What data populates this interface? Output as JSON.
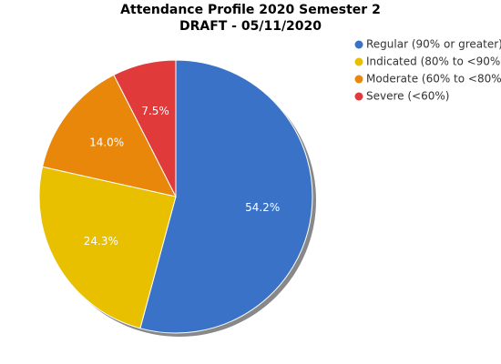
{
  "chart_data": {
    "type": "pie",
    "title": [
      "Attendance Profile 2020 Semester 2",
      "DRAFT - 05/11/2020"
    ],
    "categories": [
      "Regular (90% or greater)",
      "Indicated (80% to <90%)",
      "Moderate (60% to <80%)",
      "Severe (<60%)"
    ],
    "values": [
      54.2,
      24.3,
      14.0,
      7.5
    ],
    "value_labels": [
      "54.2%",
      "24.3%",
      "14.0%",
      "7.5%"
    ],
    "colors": [
      "#3a72c8",
      "#e8c000",
      "#e8870a",
      "#e03a3a"
    ],
    "legend": "right"
  }
}
